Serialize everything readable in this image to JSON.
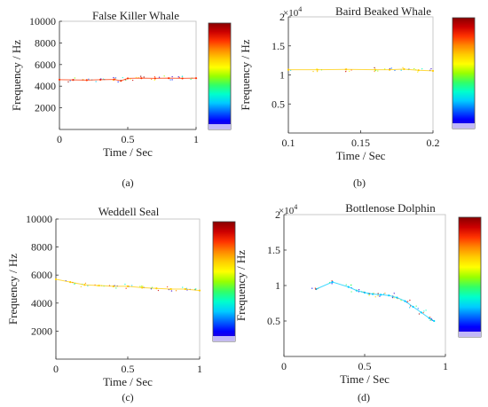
{
  "figure": {
    "panels": [
      {
        "id": "a",
        "caption": "(a)"
      },
      {
        "id": "b",
        "caption": "(b)"
      },
      {
        "id": "c",
        "caption": "(c)"
      },
      {
        "id": "d",
        "caption": "(d)"
      }
    ],
    "colormap": [
      "#3300cc",
      "#0000ff",
      "#0066ff",
      "#00ccff",
      "#00ffcc",
      "#33ff66",
      "#99ff00",
      "#ffff00",
      "#ffcc00",
      "#ff8800",
      "#ff3300",
      "#cc0000",
      "#880000"
    ]
  },
  "chart_data": [
    {
      "type": "scatter",
      "title": "False Killer Whale",
      "xlabel": "Time / Sec",
      "ylabel": "Frequency / Hz",
      "xlim": [
        0,
        1
      ],
      "ylim": [
        0,
        10000
      ],
      "xticks": [
        "0",
        "0.5",
        "1"
      ],
      "yticks": [
        "2000",
        "4000",
        "6000",
        "8000",
        "10000"
      ],
      "exponent": "",
      "series": [
        {
          "color": "#ff3300",
          "points": [
            [
              0.0,
              4600
            ],
            [
              0.1,
              4580
            ],
            [
              0.2,
              4560
            ],
            [
              0.3,
              4600
            ],
            [
              0.4,
              4620
            ],
            [
              0.45,
              4500
            ],
            [
              0.5,
              4720
            ],
            [
              0.6,
              4740
            ],
            [
              0.7,
              4720
            ],
            [
              0.8,
              4740
            ],
            [
              0.9,
              4720
            ],
            [
              1.0,
              4740
            ]
          ]
        }
      ]
    },
    {
      "type": "scatter",
      "title": "Baird Beaked Whale",
      "xlabel": "Time / Sec",
      "ylabel": "Frequency / Hz",
      "xlim": [
        0.1,
        0.2
      ],
      "ylim": [
        0,
        20000
      ],
      "xticks": [
        "0.1",
        "0.15",
        "0.2"
      ],
      "yticks": [
        "0.5",
        "1",
        "1.5",
        "2"
      ],
      "exponent": "×10^4",
      "series": [
        {
          "color": "#ffcc00",
          "points": [
            [
              0.1,
              10900
            ],
            [
              0.12,
              10900
            ],
            [
              0.14,
              10950
            ],
            [
              0.16,
              10900
            ],
            [
              0.17,
              10900
            ],
            [
              0.18,
              11000
            ],
            [
              0.19,
              10800
            ],
            [
              0.2,
              10700
            ]
          ]
        }
      ]
    },
    {
      "type": "scatter",
      "title": "Weddell Seal",
      "xlabel": "Time / Sec",
      "ylabel": "Frequency / Hz",
      "xlim": [
        0,
        1
      ],
      "ylim": [
        0,
        10000
      ],
      "xticks": [
        "0",
        "0.5",
        "1"
      ],
      "yticks": [
        "2000",
        "4000",
        "6000",
        "8000",
        "10000"
      ],
      "exponent": "",
      "series": [
        {
          "color": "#ffcc00",
          "points": [
            [
              0.0,
              5700
            ],
            [
              0.1,
              5500
            ],
            [
              0.2,
              5300
            ],
            [
              0.3,
              5250
            ],
            [
              0.4,
              5200
            ],
            [
              0.5,
              5200
            ],
            [
              0.6,
              5100
            ],
            [
              0.7,
              5050
            ],
            [
              0.8,
              5000
            ],
            [
              0.9,
              5000
            ],
            [
              1.0,
              4900
            ]
          ]
        }
      ]
    },
    {
      "type": "scatter",
      "title": "Bottlenose Dolphin",
      "xlabel": "Time / Sec",
      "ylabel": "Frequency / Hz",
      "xlim": [
        0,
        1
      ],
      "ylim": [
        0,
        20000
      ],
      "xticks": [
        "0",
        "0.5",
        "1"
      ],
      "yticks": [
        "0.5",
        "1",
        "1.5",
        "2"
      ],
      "exponent": "×10^4",
      "series": [
        {
          "color": "#00ccff",
          "points": [
            [
              0.2,
              9500
            ],
            [
              0.3,
              10500
            ],
            [
              0.4,
              9800
            ],
            [
              0.45,
              9300
            ],
            [
              0.5,
              9000
            ],
            [
              0.55,
              8800
            ],
            [
              0.6,
              8700
            ],
            [
              0.65,
              8600
            ],
            [
              0.7,
              8300
            ],
            [
              0.75,
              7800
            ],
            [
              0.8,
              7000
            ],
            [
              0.85,
              6200
            ],
            [
              0.9,
              5400
            ],
            [
              0.93,
              5000
            ]
          ]
        }
      ]
    }
  ]
}
